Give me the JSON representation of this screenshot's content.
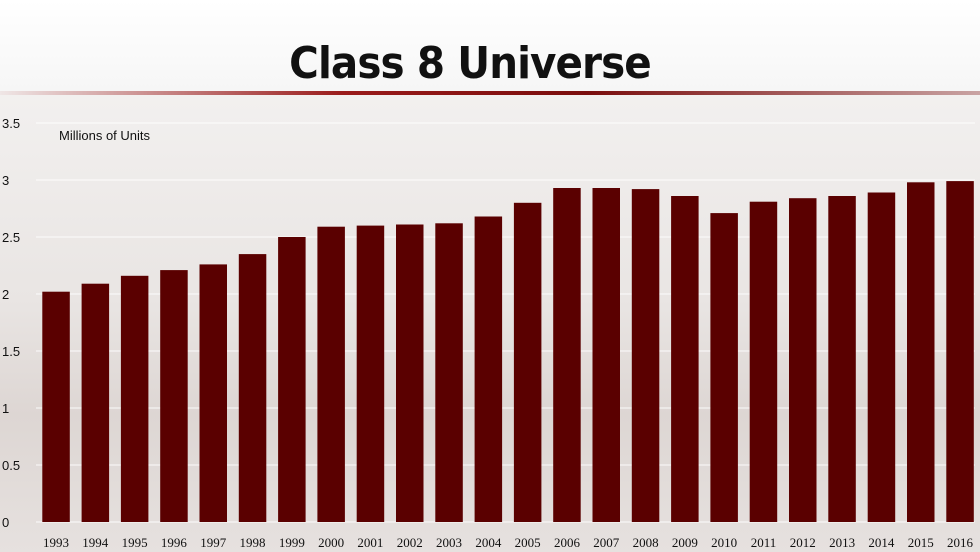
{
  "title": "Class 8 Universe",
  "colors": {
    "bar": "#5a0000",
    "grid": "#ffffff",
    "title_rule": "#8a1010"
  },
  "chart_data": {
    "type": "bar",
    "title": "Class 8 Universe",
    "ylabel": "Millions of Units",
    "xlabel": "",
    "ylim": [
      0,
      3.5
    ],
    "yticks": [
      "0",
      "0.5",
      "1",
      "1.5",
      "2",
      "2.5",
      "3",
      "3.5"
    ],
    "grid": true,
    "categories": [
      "1993",
      "1994",
      "1995",
      "1996",
      "1997",
      "1998",
      "1999",
      "2000",
      "2001",
      "2002",
      "2003",
      "2004",
      "2005",
      "2006",
      "2007",
      "2008",
      "2009",
      "2010",
      "2011",
      "2012",
      "2013",
      "2014",
      "2015",
      "2016"
    ],
    "values": [
      2.02,
      2.09,
      2.16,
      2.21,
      2.26,
      2.35,
      2.5,
      2.59,
      2.6,
      2.61,
      2.62,
      2.68,
      2.8,
      2.93,
      2.93,
      2.92,
      2.86,
      2.71,
      2.81,
      2.84,
      2.86,
      2.89,
      2.98,
      2.99
    ]
  }
}
